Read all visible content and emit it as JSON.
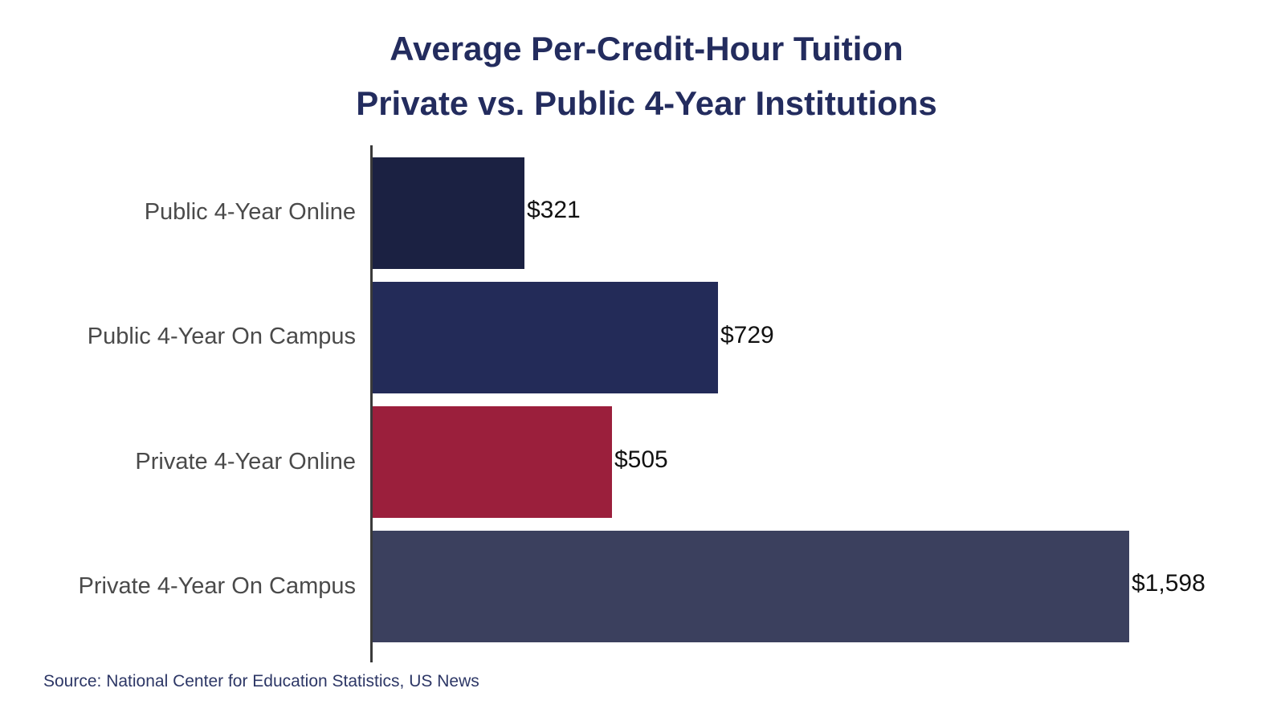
{
  "chart_data": {
    "type": "bar",
    "orientation": "horizontal",
    "title": "Average Per-Credit-Hour Tuition",
    "subtitle": "Private vs. Public 4-Year Institutions",
    "categories": [
      "Public 4-Year Online",
      "Public 4-Year On Campus",
      "Private 4-Year Online",
      "Private 4-Year On Campus"
    ],
    "values": [
      321,
      729,
      505,
      1598
    ],
    "value_labels": [
      "$321",
      "$729",
      "$505",
      "$1,598"
    ],
    "colors": [
      "#1b2142",
      "#232b58",
      "#9b1f3c",
      "#3b405e"
    ],
    "xlabel": "",
    "ylabel": "",
    "xlim": [
      0,
      1598
    ],
    "grid": false,
    "legend": null,
    "source": "Source: National Center for Education Statistics, US News"
  }
}
